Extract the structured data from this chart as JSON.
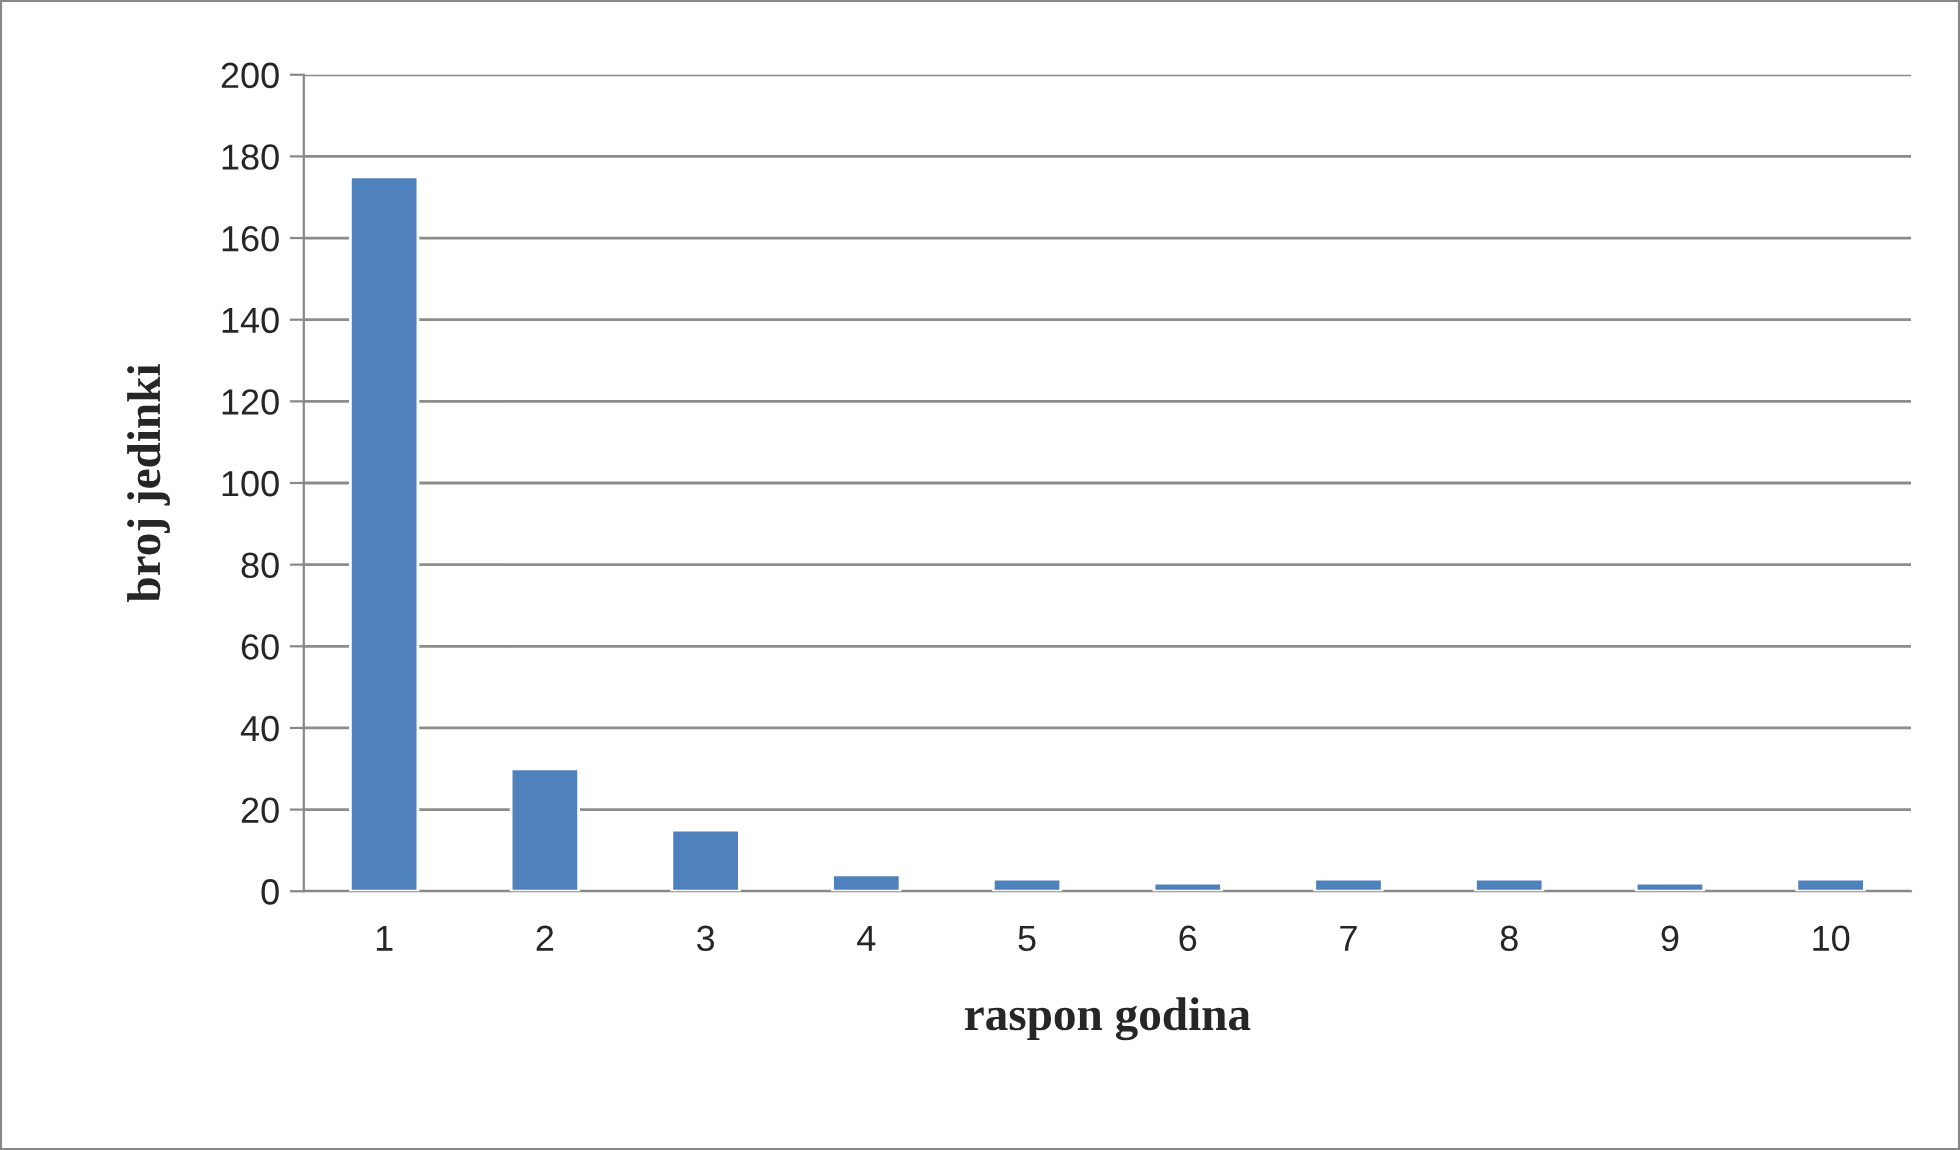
{
  "chart_data": {
    "type": "bar",
    "xlabel": "raspon godina",
    "ylabel": "broj jedinki",
    "categories": [
      "1",
      "2",
      "3",
      "4",
      "5",
      "6",
      "7",
      "8",
      "9",
      "10"
    ],
    "values": [
      175,
      30,
      15,
      4,
      3,
      2,
      3,
      3,
      2,
      3
    ],
    "color": "#4f81bd",
    "ylim": [
      0,
      200
    ],
    "yticks": [
      0,
      20,
      40,
      60,
      80,
      100,
      120,
      140,
      160,
      180,
      200
    ],
    "grid": "y",
    "legend": false
  }
}
